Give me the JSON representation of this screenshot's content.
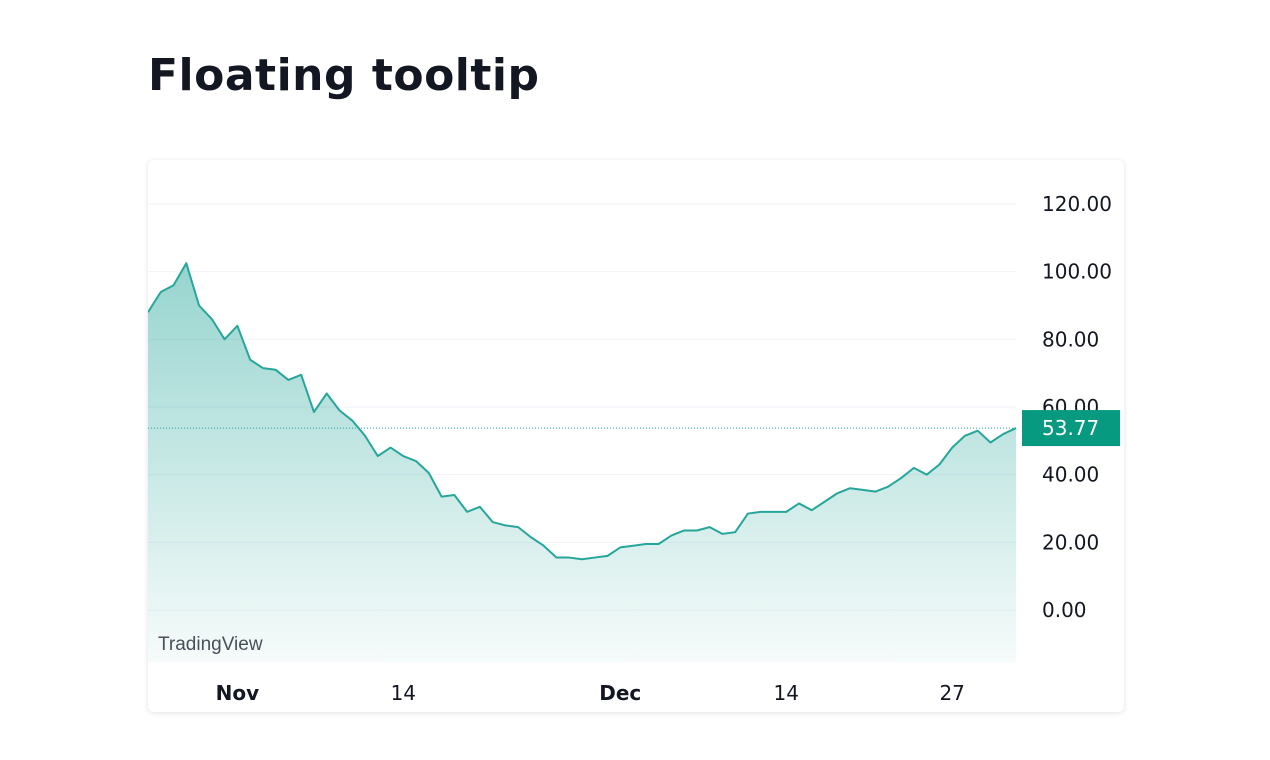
{
  "page": {
    "title": "Floating tooltip"
  },
  "chart_data": {
    "type": "area",
    "watermark": "TradingView",
    "ylim": [
      -15,
      130
    ],
    "y_ticks": [
      "120.00",
      "100.00",
      "80.00",
      "60.00",
      "40.00",
      "20.00",
      "0.00"
    ],
    "y_tick_values": [
      120,
      100,
      80,
      60,
      40,
      20,
      0
    ],
    "x_ticks": [
      {
        "label": "Nov",
        "index": 7,
        "bold": true
      },
      {
        "label": "14",
        "index": 20,
        "bold": false
      },
      {
        "label": "Dec",
        "index": 37,
        "bold": true
      },
      {
        "label": "14",
        "index": 50,
        "bold": false
      },
      {
        "label": "27",
        "index": 63,
        "bold": false
      }
    ],
    "last_value_label": "53.77",
    "last_value": 53.77,
    "colors": {
      "line": "#26a69a",
      "area_top": "#26a69a",
      "price_label_bg": "#089981"
    },
    "series": [
      {
        "values": [
          88,
          94,
          96,
          102.5,
          90,
          86,
          80,
          84,
          74,
          71.5,
          71,
          68,
          69.5,
          58.5,
          64,
          59,
          56,
          51.5,
          45.5,
          48,
          45.5,
          44,
          40.5,
          33.5,
          34,
          29,
          30.5,
          26,
          25,
          24.5,
          21.5,
          19,
          15.5,
          15.5,
          15,
          15.5,
          16,
          18.5,
          19,
          19.5,
          19.5,
          22,
          23.5,
          23.5,
          24.5,
          22.5,
          23,
          28.5,
          29,
          29,
          29,
          31.5,
          29.5,
          32,
          34.5,
          36,
          35.5,
          35,
          36.5,
          39,
          42,
          40,
          43,
          48,
          51.5,
          53,
          49.5,
          52,
          53.77
        ]
      }
    ]
  }
}
